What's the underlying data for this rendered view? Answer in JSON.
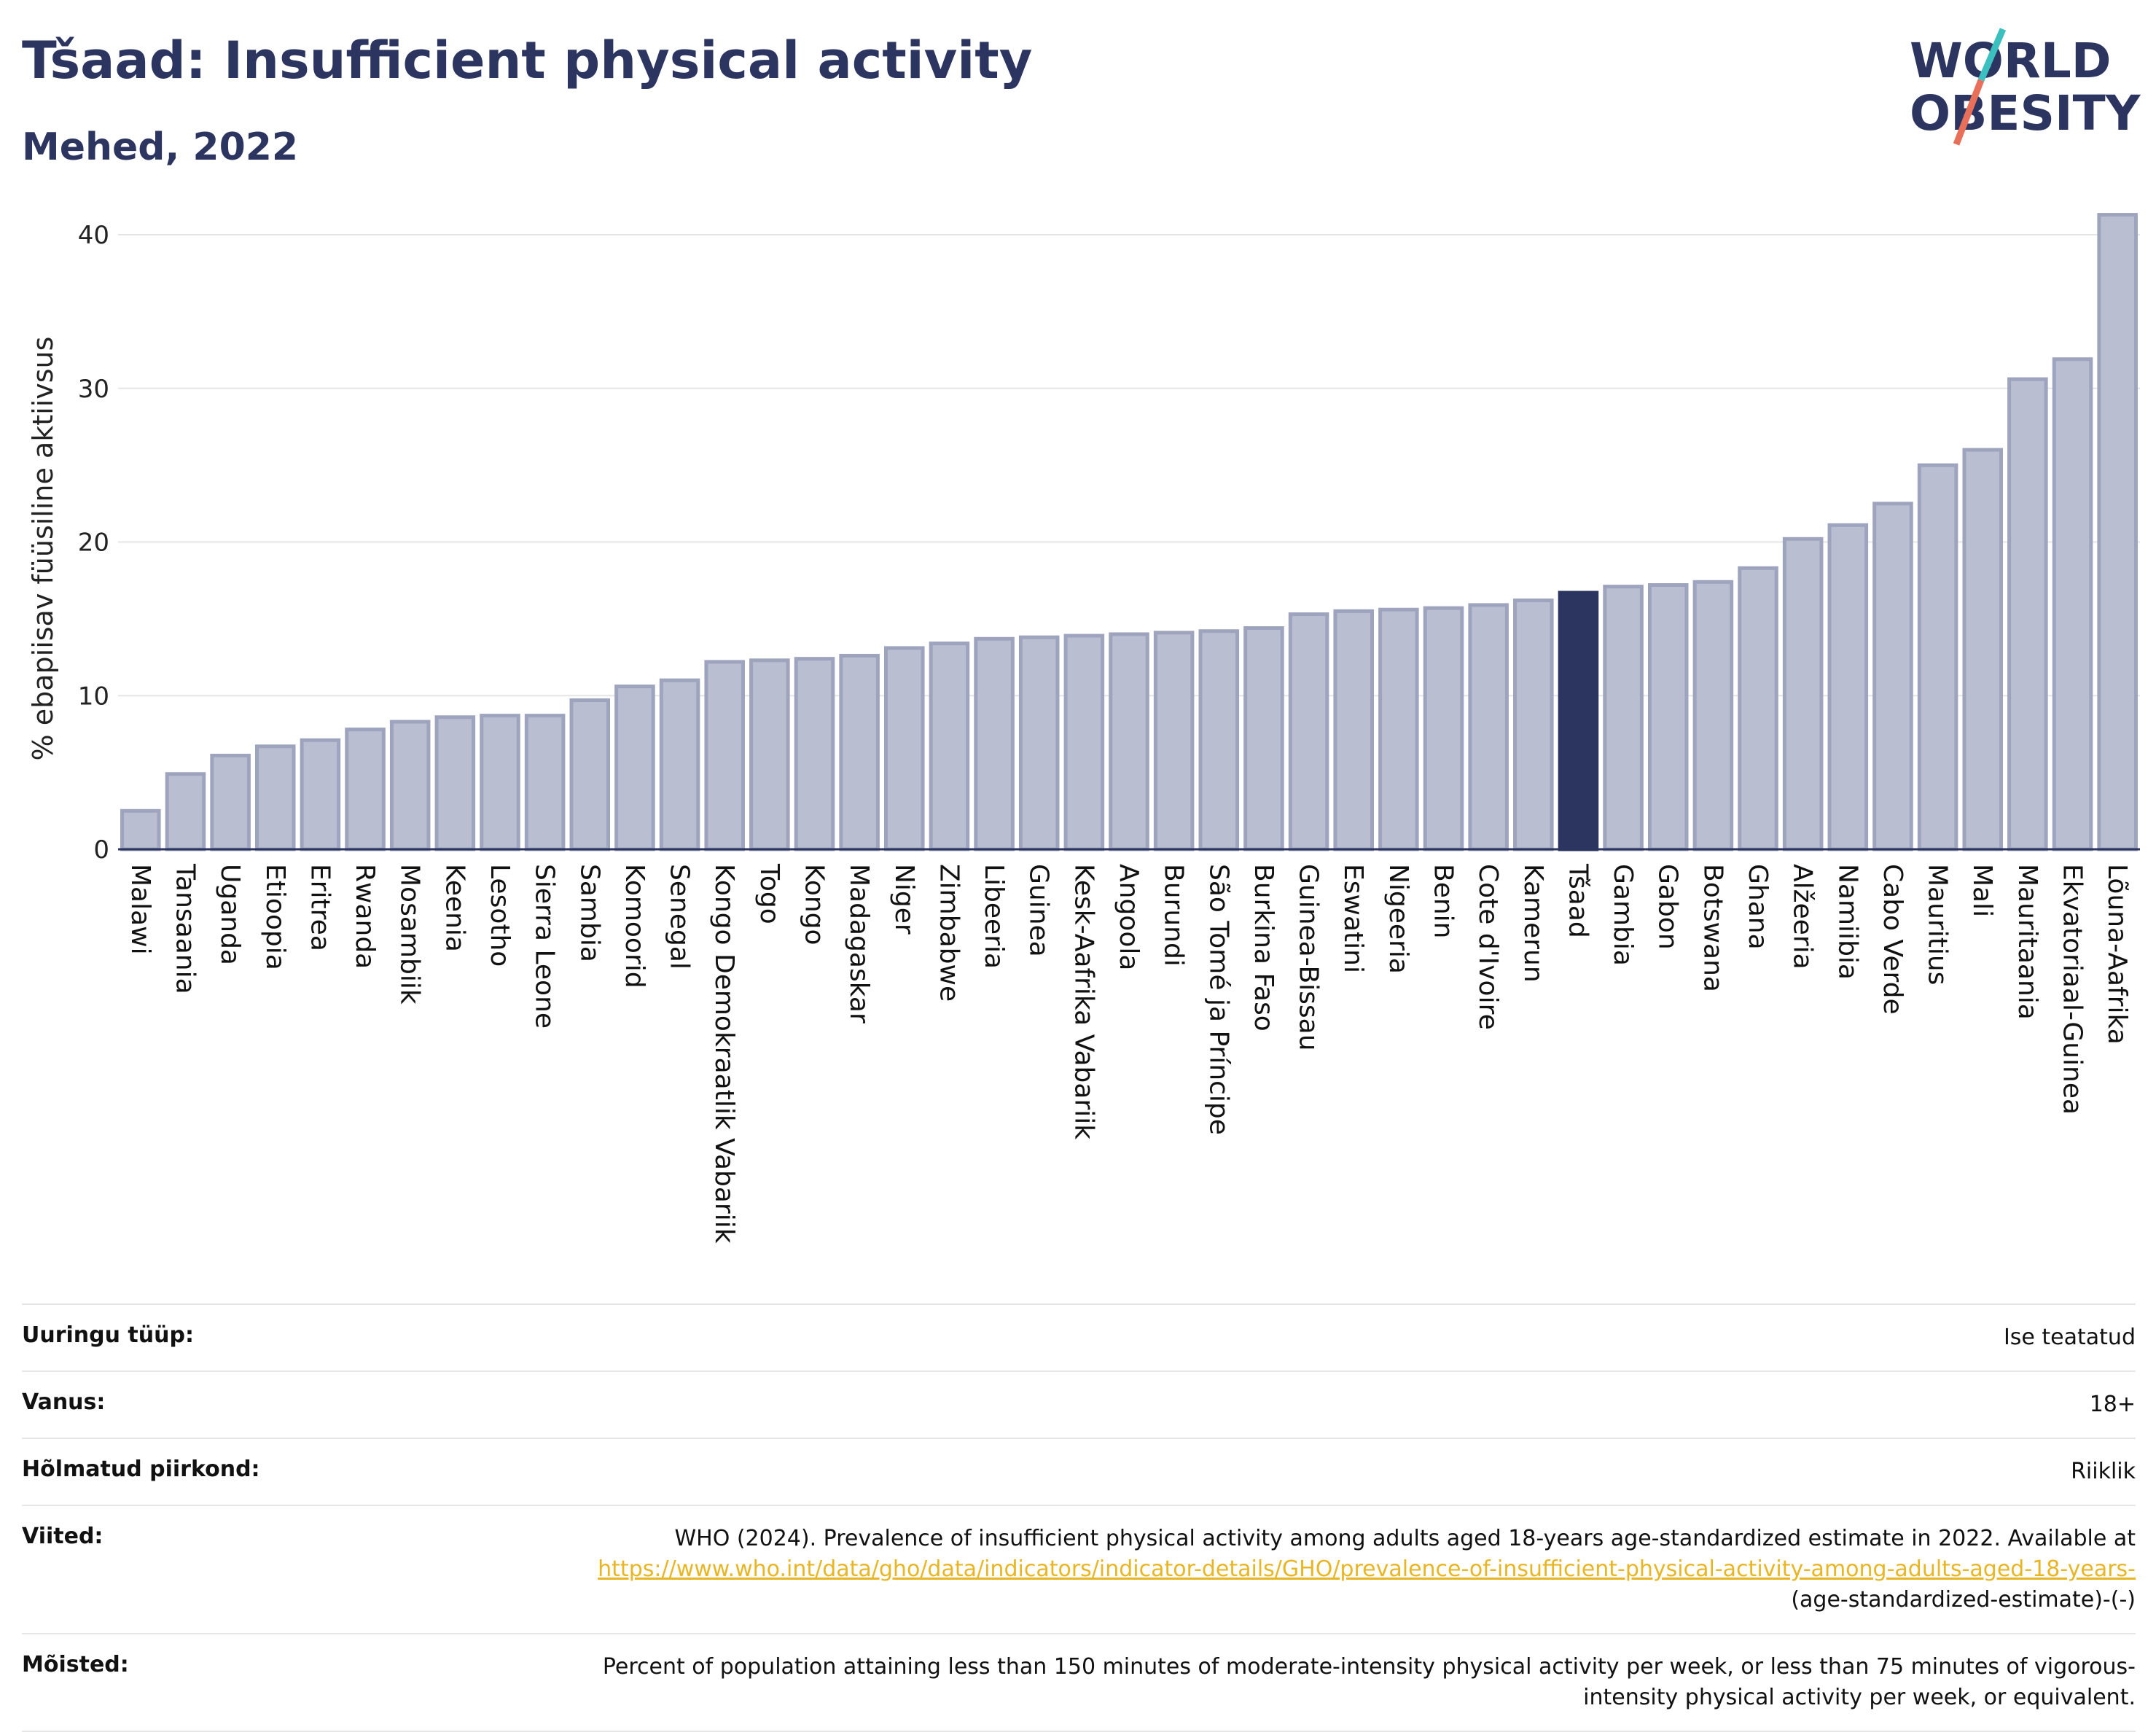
{
  "header": {
    "title": "Tšaad: Insufficient physical activity",
    "subtitle": "Mehed, 2022"
  },
  "logo": {
    "line1": "WORLD",
    "line2": "OBESITY",
    "colors": {
      "text": "#2b3560",
      "slash_top": "#3bbfbf",
      "slash_bottom": "#e8705a"
    }
  },
  "colors": {
    "bar": "#b9bed0",
    "bar_border": "#9ea4bd",
    "highlight": "#2b3560",
    "grid": "#e5e5e5",
    "axis": "#2b3560"
  },
  "chart_data": {
    "type": "bar",
    "ylabel": "% ebapiisav füüsiline aktiivsus",
    "ylim": [
      0,
      42
    ],
    "yticks": [
      0,
      10,
      20,
      30,
      40
    ],
    "grid": true,
    "highlight": "Tšaad",
    "categories": [
      "Malawi",
      "Tansaania",
      "Uganda",
      "Etioopia",
      "Eritrea",
      "Rwanda",
      "Mosambiik",
      "Keenia",
      "Lesotho",
      "Sierra Leone",
      "Sambia",
      "Komoorid",
      "Senegal",
      "Kongo Demokraatlik Vabariik",
      "Togo",
      "Kongo",
      "Madagaskar",
      "Niger",
      "Zimbabwe",
      "Libeeria",
      "Guinea",
      "Kesk-Aafrika Vabariik",
      "Angoola",
      "Burundi",
      "São Tomé ja Príncipe",
      "Burkina Faso",
      "Guinea-Bissau",
      "Eswatini",
      "Nigeeria",
      "Benin",
      "Cote d'Ivoire",
      "Kamerun",
      "Tšaad",
      "Gambia",
      "Gabon",
      "Botswana",
      "Ghana",
      "Alžeeria",
      "Namiibia",
      "Cabo Verde",
      "Mauritius",
      "Mali",
      "Mauritaania",
      "Ekvatoriaal-Guinea",
      "Lõuna-Aafrika"
    ],
    "values": [
      2.5,
      4.9,
      6.1,
      6.7,
      7.1,
      7.8,
      8.3,
      8.6,
      8.7,
      8.7,
      9.7,
      10.6,
      11.0,
      12.2,
      12.3,
      12.4,
      12.6,
      13.1,
      13.4,
      13.7,
      13.8,
      13.9,
      14.0,
      14.1,
      14.2,
      14.4,
      15.3,
      15.5,
      15.6,
      15.7,
      15.9,
      16.2,
      16.7,
      17.1,
      17.2,
      17.4,
      18.3,
      20.2,
      21.1,
      22.5,
      25.0,
      26.0,
      30.6,
      31.9,
      41.3
    ]
  },
  "meta": {
    "survey_type_label": "Uuringu tüüp:",
    "survey_type_value": "Ise teatatud",
    "age_label": "Vanus:",
    "age_value": "18+",
    "area_label": "Hõlmatud piirkond:",
    "area_value": "Riiklik",
    "refs_label": "Viited:",
    "refs_text": "WHO (2024). Prevalence of insufficient physical activity among adults aged 18-years age-standardized estimate in 2022. Available at",
    "refs_link": "https://www.who.int/data/gho/data/indicators/indicator-details/GHO/prevalence-of-insufficient-physical-activity-among-adults-aged-18-years-",
    "refs_tail": "(age-standardized-estimate)-(-)",
    "defs_label": "Mõisted:",
    "defs_text": "Percent of population attaining less than 150 minutes of moderate-intensity physical activity per week, or less than 75 minutes of vigorous-intensity physical activity per week, or equivalent."
  }
}
